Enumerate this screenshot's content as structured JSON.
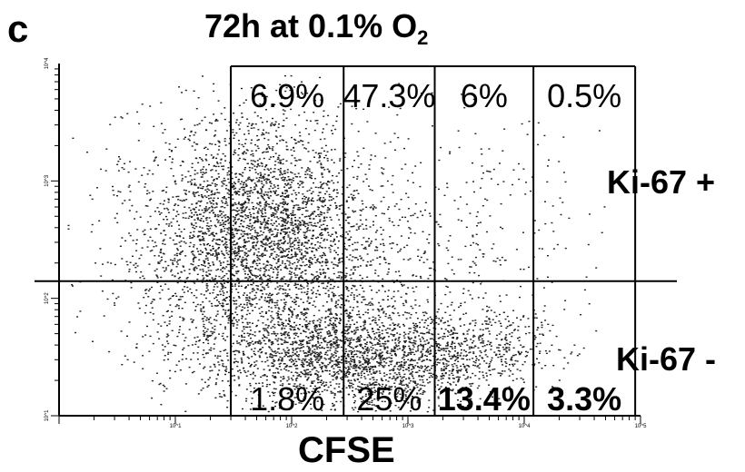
{
  "panel": {
    "letter": "c"
  },
  "figure": {
    "title_main": "72h at 0.1% O",
    "title_sub": "2",
    "xlabel": "CFSE",
    "row_labels": [
      "Ki-67 +",
      "Ki-67 -"
    ]
  },
  "chart_data": {
    "type": "scatter",
    "title": "72h at 0.1% O2",
    "xlabel": "CFSE",
    "ylabel": "",
    "x_scale": "log",
    "y_scale": "log",
    "xlim": [
      1,
      100000
    ],
    "ylim": [
      10,
      10000
    ],
    "x_ticks": [
      "10^1",
      "10^2",
      "10^3",
      "10^4",
      "10^5"
    ],
    "y_ticks": [
      "10^1",
      "10^2",
      "10^3",
      "10^4"
    ],
    "quadrant_threshold_y": 140,
    "gate_bounds_x": [
      30,
      280,
      1700,
      12000,
      90000
    ],
    "quadrants": [
      {
        "row": "Ki-67 +",
        "values": [
          "6.9%",
          "47.3%",
          "6%",
          "0.5%"
        ]
      },
      {
        "row": "Ki-67 -",
        "values": [
          "1.8%",
          "25%",
          "13.4%",
          "3.3%"
        ]
      }
    ]
  }
}
